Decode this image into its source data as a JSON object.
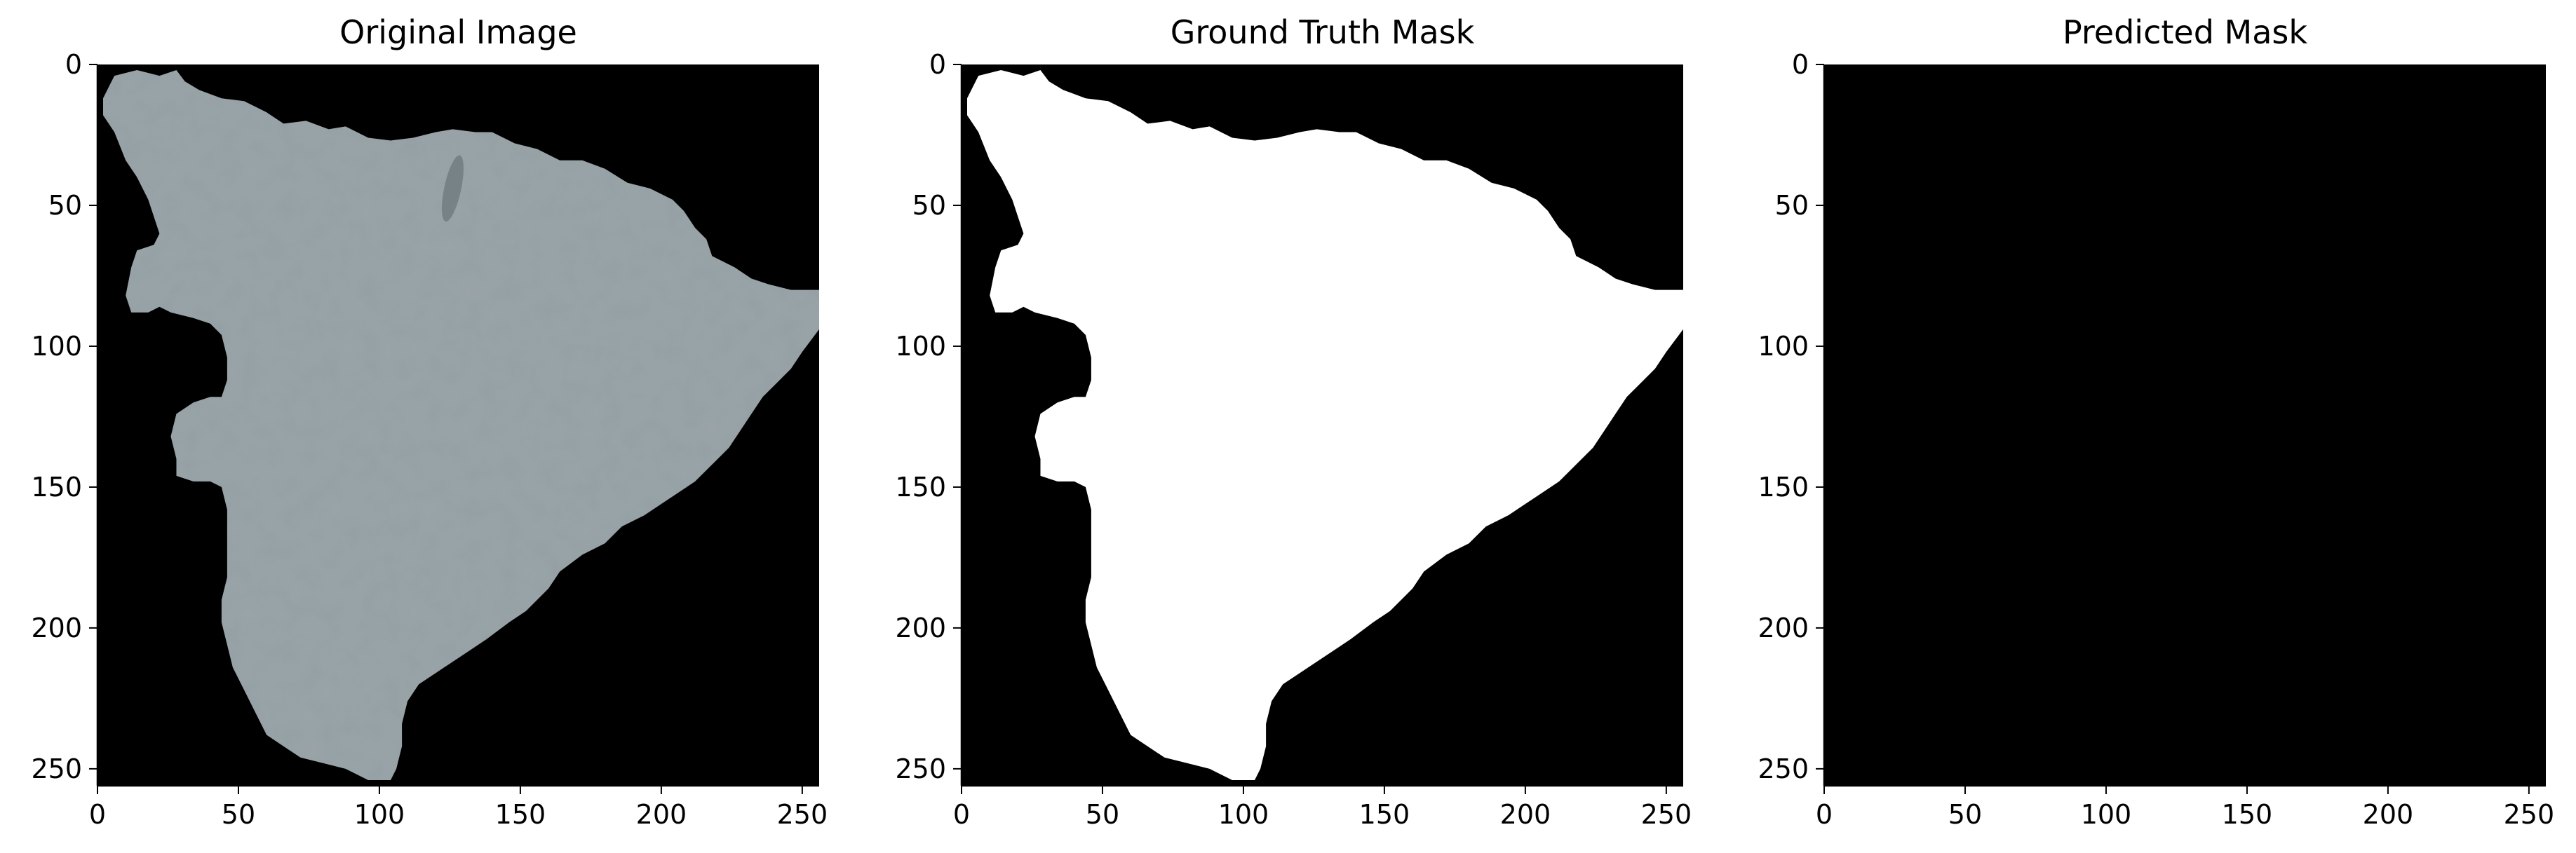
{
  "figure": {
    "panels": [
      {
        "id": "original",
        "title": "Original Image",
        "image_kind": "rgb-photo",
        "x_ticks": [
          "0",
          "50",
          "100",
          "150",
          "200",
          "250"
        ],
        "y_ticks": [
          "0",
          "50",
          "100",
          "150",
          "200",
          "250"
        ]
      },
      {
        "id": "ground-truth",
        "title": "Ground Truth Mask",
        "image_kind": "binary-mask",
        "x_ticks": [
          "0",
          "50",
          "100",
          "150",
          "200",
          "250"
        ],
        "y_ticks": [
          "0",
          "50",
          "100",
          "150",
          "200",
          "250"
        ]
      },
      {
        "id": "predicted",
        "title": "Predicted Mask",
        "image_kind": "empty-mask",
        "x_ticks": [
          "0",
          "50",
          "100",
          "150",
          "200",
          "250"
        ],
        "y_ticks": [
          "0",
          "50",
          "100",
          "150",
          "200",
          "250"
        ]
      }
    ]
  },
  "colors": {
    "background": "#000000",
    "tissue": "#9aa4a8",
    "tissue_dark": "#6f7a80",
    "mask": "#ffffff",
    "axis": "#000000"
  }
}
